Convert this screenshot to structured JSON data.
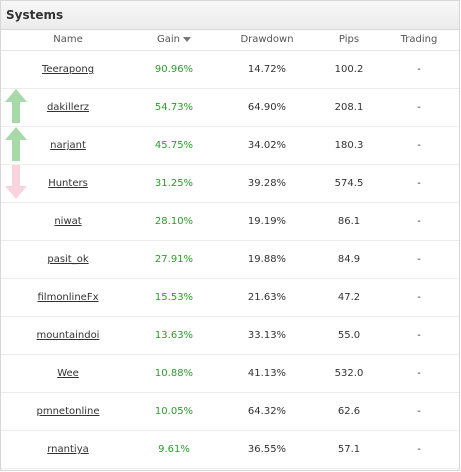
{
  "panel": {
    "title": "Systems"
  },
  "columns": {
    "name": "Name",
    "gain": "Gain",
    "drawdown": "Drawdown",
    "pips": "Pips",
    "trading": "Trading"
  },
  "colors": {
    "gain": "#2e9a2e",
    "up_arrow": "#a8d9a8",
    "down_arrow": "#f9d4dc"
  },
  "rows": [
    {
      "name": "Teerapong",
      "gain": "90.96%",
      "drawdown": "14.72%",
      "pips": "100.2",
      "trading": "-",
      "trend": "none"
    },
    {
      "name": "dakillerz",
      "gain": "54.73%",
      "drawdown": "64.90%",
      "pips": "208.1",
      "trading": "-",
      "trend": "up"
    },
    {
      "name": "narjant",
      "gain": "45.75%",
      "drawdown": "34.02%",
      "pips": "180.3",
      "trading": "-",
      "trend": "up"
    },
    {
      "name": "Hunters",
      "gain": "31.25%",
      "drawdown": "39.28%",
      "pips": "574.5",
      "trading": "-",
      "trend": "down"
    },
    {
      "name": "niwat",
      "gain": "28.10%",
      "drawdown": "19.19%",
      "pips": "86.1",
      "trading": "-",
      "trend": "none"
    },
    {
      "name": "pasit_ok",
      "gain": "27.91%",
      "drawdown": "19.88%",
      "pips": "84.9",
      "trading": "-",
      "trend": "none"
    },
    {
      "name": "filmonlineFx",
      "gain": "15.53%",
      "drawdown": "21.63%",
      "pips": "47.2",
      "trading": "-",
      "trend": "none"
    },
    {
      "name": "mountaindoi",
      "gain": "13.63%",
      "drawdown": "33.13%",
      "pips": "55.0",
      "trading": "-",
      "trend": "none"
    },
    {
      "name": "Wee",
      "gain": "10.88%",
      "drawdown": "41.13%",
      "pips": "532.0",
      "trading": "-",
      "trend": "none"
    },
    {
      "name": "pmnetonline",
      "gain": "10.05%",
      "drawdown": "64.32%",
      "pips": "62.6",
      "trading": "-",
      "trend": "none"
    },
    {
      "name": "rnantiya",
      "gain": "9.61%",
      "drawdown": "36.55%",
      "pips": "57.1",
      "trading": "-",
      "trend": "none"
    }
  ]
}
